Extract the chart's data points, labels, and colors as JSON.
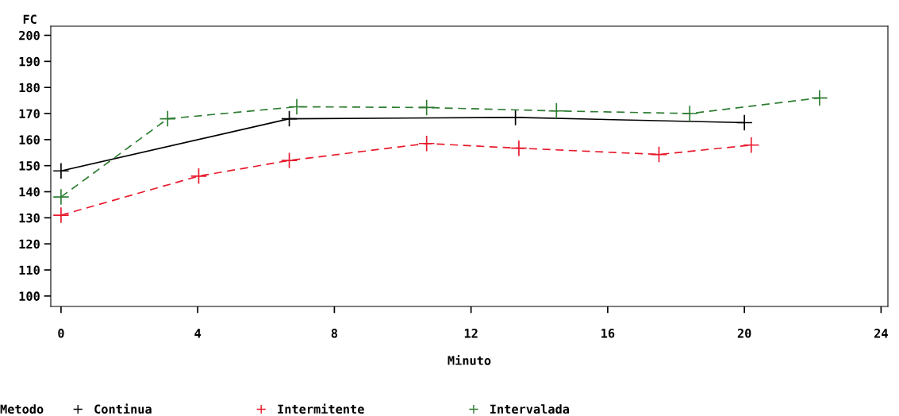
{
  "chart_data": {
    "type": "line",
    "xlabel": "Minuto",
    "ylabel": "FC",
    "legend_title": "Metodo",
    "legend": "bottom",
    "marker": "cross",
    "grid": false,
    "xlim": [
      -0.3,
      24.2
    ],
    "xticks": [
      0,
      4,
      8,
      12,
      16,
      20,
      24
    ],
    "ylim": [
      96,
      203.5
    ],
    "yticks": [
      100,
      110,
      120,
      130,
      140,
      150,
      160,
      170,
      180,
      190,
      200
    ],
    "series": [
      {
        "name": "Continua",
        "color": "#000000",
        "line_style": "solid",
        "x": [
          0,
          6.68,
          13.3,
          20.0
        ],
        "values": [
          148,
          168,
          168.5,
          166.5
        ]
      },
      {
        "name": "Intermitente",
        "color": "#e8192c",
        "line_style": "dashed",
        "x": [
          0,
          4.03,
          6.68,
          10.7,
          13.4,
          17.5,
          20.2
        ],
        "values": [
          131,
          146,
          152,
          158.5,
          156.7,
          154.3,
          157.9
        ]
      },
      {
        "name": "Intervalada",
        "color": "#2e7d32",
        "line_style": "dashed",
        "x": [
          0,
          3.12,
          6.9,
          10.7,
          14.5,
          18.4,
          22.2
        ],
        "values": [
          138,
          168,
          172.6,
          172.3,
          171,
          170,
          176
        ]
      }
    ]
  }
}
